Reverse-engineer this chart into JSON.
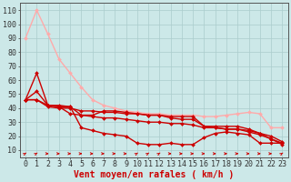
{
  "title": "",
  "xlabel": "Vent moyen/en rafales ( km/h )",
  "ylabel": "",
  "bg_color": "#cce8e8",
  "grid_color": "#aacccc",
  "xlim": [
    -0.5,
    23.5
  ],
  "ylim": [
    5,
    115
  ],
  "yticks": [
    10,
    20,
    30,
    40,
    50,
    60,
    70,
    80,
    90,
    100,
    110
  ],
  "xticks": [
    0,
    1,
    2,
    3,
    4,
    5,
    6,
    7,
    8,
    9,
    10,
    11,
    12,
    13,
    14,
    15,
    16,
    17,
    18,
    19,
    20,
    21,
    22,
    23
  ],
  "series": [
    {
      "x": [
        0,
        1,
        2,
        3,
        4,
        5,
        6,
        7,
        8,
        9,
        10,
        11,
        12,
        13,
        14,
        15,
        16,
        17,
        18,
        19,
        20,
        21,
        22,
        23
      ],
      "y": [
        90,
        110,
        93,
        75,
        65,
        55,
        46,
        42,
        40,
        38,
        37,
        36,
        36,
        35,
        35,
        35,
        34,
        34,
        35,
        36,
        37,
        36,
        26,
        26
      ],
      "color": "#ffaaaa",
      "markersize": 2.0,
      "linewidth": 1.0
    },
    {
      "x": [
        0,
        1,
        2,
        3,
        4,
        5,
        6,
        7,
        8,
        9,
        10,
        11,
        12,
        13,
        14,
        15,
        16,
        17,
        18,
        19,
        20,
        21,
        22,
        23
      ],
      "y": [
        46,
        65,
        42,
        42,
        41,
        35,
        35,
        38,
        38,
        37,
        36,
        35,
        35,
        34,
        34,
        34,
        27,
        27,
        27,
        27,
        25,
        22,
        20,
        16
      ],
      "color": "#cc0000",
      "markersize": 2.0,
      "linewidth": 1.0
    },
    {
      "x": [
        0,
        1,
        2,
        3,
        4,
        5,
        6,
        7,
        8,
        9,
        10,
        11,
        12,
        13,
        14,
        15,
        16,
        17,
        18,
        19,
        20,
        21,
        22,
        23
      ],
      "y": [
        46,
        52,
        42,
        41,
        36,
        35,
        34,
        33,
        33,
        32,
        31,
        30,
        30,
        29,
        29,
        28,
        26,
        26,
        25,
        25,
        24,
        22,
        18,
        15
      ],
      "color": "#cc0000",
      "markersize": 2.0,
      "linewidth": 1.0
    },
    {
      "x": [
        0,
        1,
        2,
        3,
        4,
        5,
        6,
        7,
        8,
        9,
        10,
        11,
        12,
        13,
        14,
        15,
        16,
        17,
        18,
        19,
        20,
        21,
        22,
        23
      ],
      "y": [
        46,
        46,
        42,
        41,
        41,
        26,
        24,
        22,
        21,
        20,
        15,
        14,
        14,
        15,
        14,
        14,
        19,
        22,
        23,
        22,
        21,
        15,
        15,
        15
      ],
      "color": "#cc0000",
      "markersize": 2.0,
      "linewidth": 1.0
    },
    {
      "x": [
        0,
        1,
        2,
        3,
        4,
        5,
        6,
        7,
        8,
        9,
        10,
        11,
        12,
        13,
        14,
        15,
        16,
        17,
        18,
        19,
        20,
        21,
        22,
        23
      ],
      "y": [
        46,
        46,
        41,
        40,
        40,
        38,
        38,
        37,
        37,
        36,
        36,
        35,
        35,
        33,
        32,
        32,
        27,
        26,
        25,
        25,
        23,
        21,
        18,
        14
      ],
      "color": "#cc0000",
      "markersize": 2.0,
      "linewidth": 1.0
    }
  ],
  "arrow_color": "#cc0000",
  "xlabel_color": "#cc0000",
  "xlabel_fontsize": 7,
  "tick_fontsize": 6,
  "arrow_angles": [
    45,
    45,
    0,
    0,
    0,
    0,
    0,
    0,
    0,
    0,
    45,
    45,
    45,
    0,
    0,
    0,
    0,
    0,
    0,
    0,
    0,
    0,
    0,
    45
  ]
}
